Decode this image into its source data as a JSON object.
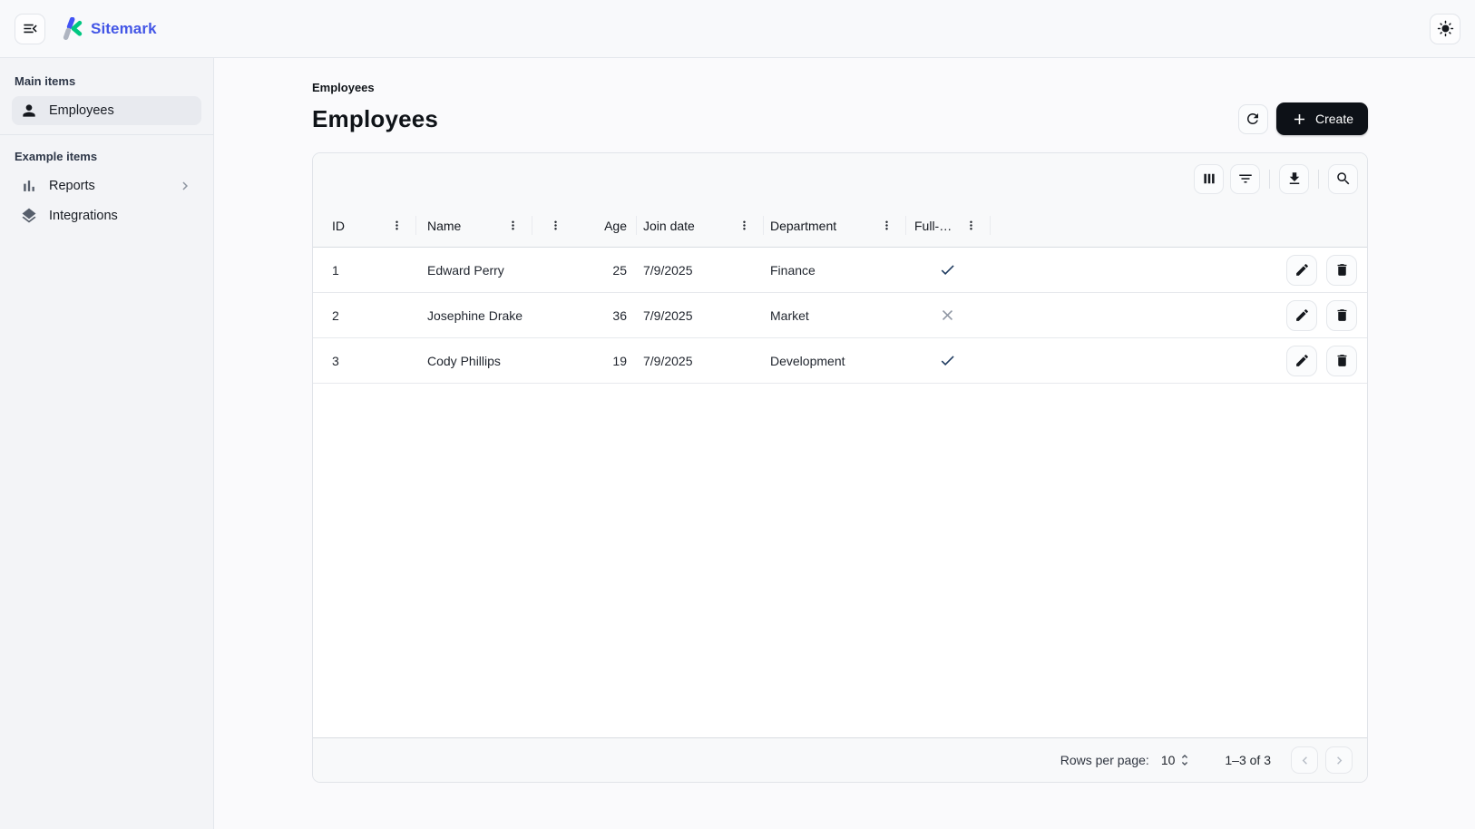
{
  "topbar": {
    "brand": "Sitemark",
    "menu_icon": "menu-open-icon",
    "theme_icon": "sun-icon",
    "logo_icon": "sitemark-logo-icon"
  },
  "sidebar": {
    "sections": [
      {
        "title": "Main items",
        "items": [
          {
            "label": "Employees",
            "icon": "person-icon",
            "selected": true
          }
        ]
      },
      {
        "title": "Example items",
        "items": [
          {
            "label": "Reports",
            "icon": "bar-chart-icon",
            "expandable": true,
            "chevron_icon": "chevron-right-icon"
          },
          {
            "label": "Integrations",
            "icon": "layers-icon"
          }
        ]
      }
    ]
  },
  "page": {
    "breadcrumb": "Employees",
    "title": "Employees",
    "refresh_icon": "refresh-icon",
    "create_label": "Create",
    "create_icon": "plus-icon"
  },
  "grid": {
    "toolbar_icons": [
      "view-columns-icon",
      "filter-icon",
      "download-icon",
      "search-icon"
    ],
    "columns": [
      {
        "key": "id",
        "label": "ID",
        "menu": "right"
      },
      {
        "key": "name",
        "label": "Name",
        "menu": "right"
      },
      {
        "key": "age",
        "label": "Age",
        "menu": "left",
        "align": "right"
      },
      {
        "key": "join_date",
        "label": "Join date",
        "menu": "right"
      },
      {
        "key": "department",
        "label": "Department",
        "menu": "right"
      },
      {
        "key": "full_time",
        "label": "Full-…",
        "menu": "right",
        "type": "boolean"
      }
    ],
    "rows": [
      {
        "id": "1",
        "name": "Edward Perry",
        "age": "25",
        "join_date": "7/9/2025",
        "department": "Finance",
        "full_time": true
      },
      {
        "id": "2",
        "name": "Josephine Drake",
        "age": "36",
        "join_date": "7/9/2025",
        "department": "Market",
        "full_time": false
      },
      {
        "id": "3",
        "name": "Cody Phillips",
        "age": "19",
        "join_date": "7/9/2025",
        "department": "Development",
        "full_time": true
      }
    ],
    "row_action_icons": [
      "pencil-icon",
      "trash-icon"
    ],
    "bool_icons": {
      "true": "check-icon",
      "false": "close-icon"
    },
    "footer": {
      "rows_per_page_label": "Rows per page:",
      "rows_per_page_value": "10",
      "select_icon": "unfold-more-icon",
      "range_label": "1–3 of 3",
      "prev_icon": "chevron-left-icon",
      "next_icon": "chevron-right-icon"
    }
  },
  "colors": {
    "brand_blue": "#4254F5",
    "brand_green": "#00C781",
    "brand_gray": "#AEB4C0",
    "brand_text": "#4356E6",
    "create_bg": "#0D1117",
    "check": "#1E3A5F",
    "cross": "#8F96A3",
    "sel_bg": "#E8EAEF"
  }
}
